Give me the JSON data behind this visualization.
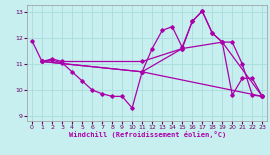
{
  "xlabel": "Windchill (Refroidissement éolien,°C)",
  "xlim": [
    -0.5,
    23.5
  ],
  "ylim": [
    8.8,
    13.3
  ],
  "yticks": [
    9,
    10,
    11,
    12,
    13
  ],
  "xticks": [
    0,
    1,
    2,
    3,
    4,
    5,
    6,
    7,
    8,
    9,
    10,
    11,
    12,
    13,
    14,
    15,
    16,
    17,
    18,
    19,
    20,
    21,
    22,
    23
  ],
  "bg_color": "#c8efef",
  "line_color": "#aa00aa",
  "grid_color": "#aadddd",
  "lines": [
    {
      "x": [
        0,
        1,
        2,
        3,
        4,
        5,
        6,
        7,
        8,
        9,
        10,
        11,
        12,
        13,
        14,
        15,
        16,
        17,
        18,
        19,
        20,
        21,
        22,
        23
      ],
      "y": [
        11.9,
        11.1,
        11.15,
        11.05,
        10.7,
        10.35,
        10.0,
        9.85,
        9.75,
        9.75,
        9.3,
        10.7,
        11.6,
        12.3,
        12.45,
        11.65,
        12.65,
        13.05,
        12.2,
        11.85,
        9.8,
        10.45,
        10.45,
        9.75
      ]
    },
    {
      "x": [
        1,
        2,
        3,
        11,
        15,
        16,
        17,
        18,
        19,
        20,
        21,
        22,
        23
      ],
      "y": [
        11.1,
        11.2,
        11.1,
        11.1,
        11.6,
        12.65,
        13.05,
        12.2,
        11.85,
        11.85,
        11.0,
        9.8,
        9.75
      ]
    },
    {
      "x": [
        1,
        11,
        15,
        19,
        23
      ],
      "y": [
        11.1,
        10.7,
        11.6,
        11.85,
        9.75
      ]
    },
    {
      "x": [
        1,
        11,
        23
      ],
      "y": [
        11.1,
        10.7,
        9.75
      ]
    }
  ]
}
